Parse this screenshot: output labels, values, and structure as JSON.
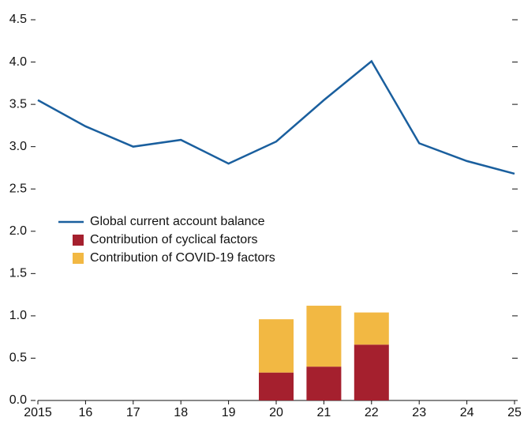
{
  "chart_data": {
    "type": "combo",
    "categories": [
      "2015",
      "16",
      "17",
      "18",
      "19",
      "20",
      "21",
      "22",
      "23",
      "24",
      "25"
    ],
    "series": [
      {
        "name": "Global current account balance",
        "type": "line",
        "color": "#1a5f9e",
        "values": [
          3.55,
          3.24,
          3.0,
          3.08,
          2.8,
          3.06,
          3.55,
          4.01,
          3.04,
          2.83,
          2.68
        ]
      },
      {
        "name": "Contribution of cyclical factors",
        "type": "bar",
        "color": "#a5202e",
        "values": [
          null,
          null,
          null,
          null,
          null,
          0.33,
          0.4,
          0.66,
          null,
          null,
          null
        ]
      },
      {
        "name": "Contribution of COVID-19 factors",
        "type": "bar",
        "color": "#f2b843",
        "values": [
          null,
          null,
          null,
          null,
          null,
          0.63,
          0.72,
          0.38,
          null,
          null,
          null
        ]
      }
    ],
    "ylim": [
      0,
      4.5
    ],
    "yticks": [
      {
        "value": 0,
        "label": "0.0"
      },
      0.5,
      {
        "value": 1,
        "label": "1.0"
      },
      1.5,
      {
        "value": 2,
        "label": "2.0"
      },
      2.5,
      {
        "value": 3,
        "label": "3.0"
      },
      3.5,
      {
        "value": 4,
        "label": "4.0"
      },
      4.5
    ],
    "legend": "upper-left"
  }
}
